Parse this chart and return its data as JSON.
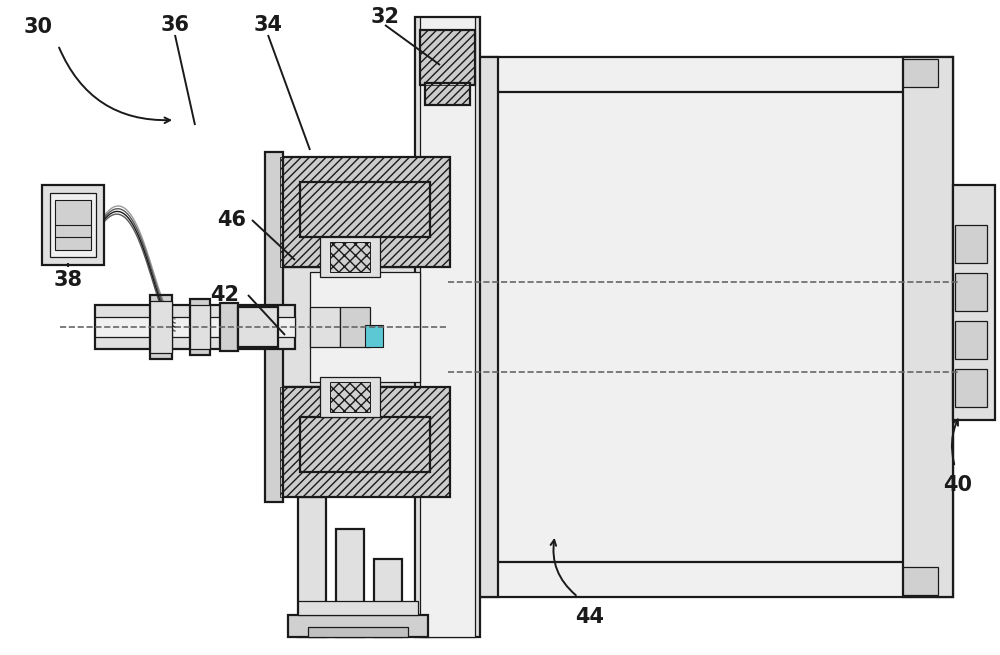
{
  "bg_color": "#ffffff",
  "lc": "#1a1a1a",
  "gray1": "#f0f0f0",
  "gray2": "#e0e0e0",
  "gray3": "#d0d0d0",
  "gray4": "#c0c0c0",
  "hatch_fc": "#cccccc",
  "cyan": "#5bc8d4",
  "lw_main": 1.6,
  "lw_thin": 0.9,
  "lw_thick": 2.2,
  "label_fs": 15
}
